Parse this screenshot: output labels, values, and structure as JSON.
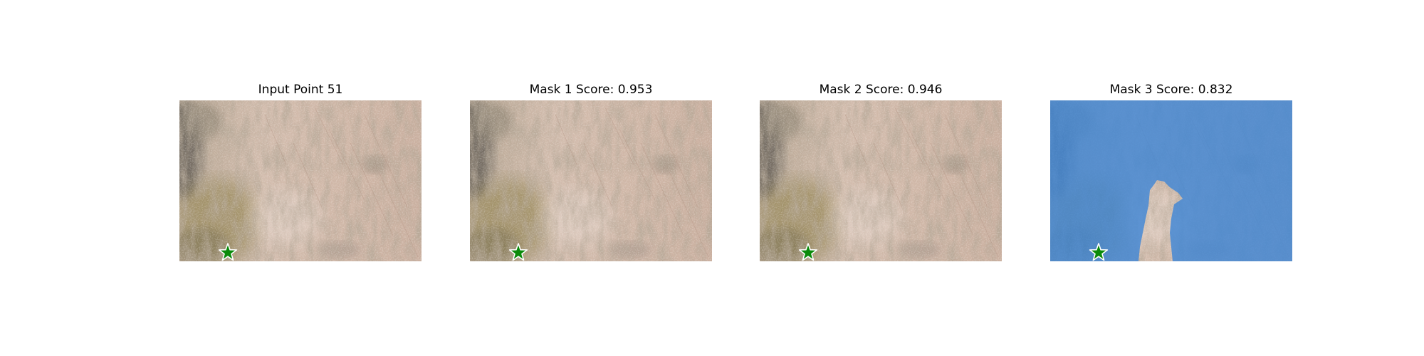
{
  "panels": [
    {
      "title": "Input Point 51",
      "mask_overlay": false
    },
    {
      "title": "Mask 1 Score: 0.953",
      "mask_overlay": false
    },
    {
      "title": "Mask 2 Score: 0.946",
      "mask_overlay": false
    },
    {
      "title": "Mask 3 Score: 0.832",
      "mask_overlay": true
    }
  ],
  "colors": {
    "ground_base": "#cdb7a6",
    "ground_dark": "#7d7564",
    "ground_green": "#9a8a5c",
    "mask_blue": "#3f86d6",
    "star_fill": "#0a8a0a",
    "star_stroke": "#ffffff"
  },
  "icons": {
    "input_point_marker": "star-icon"
  }
}
